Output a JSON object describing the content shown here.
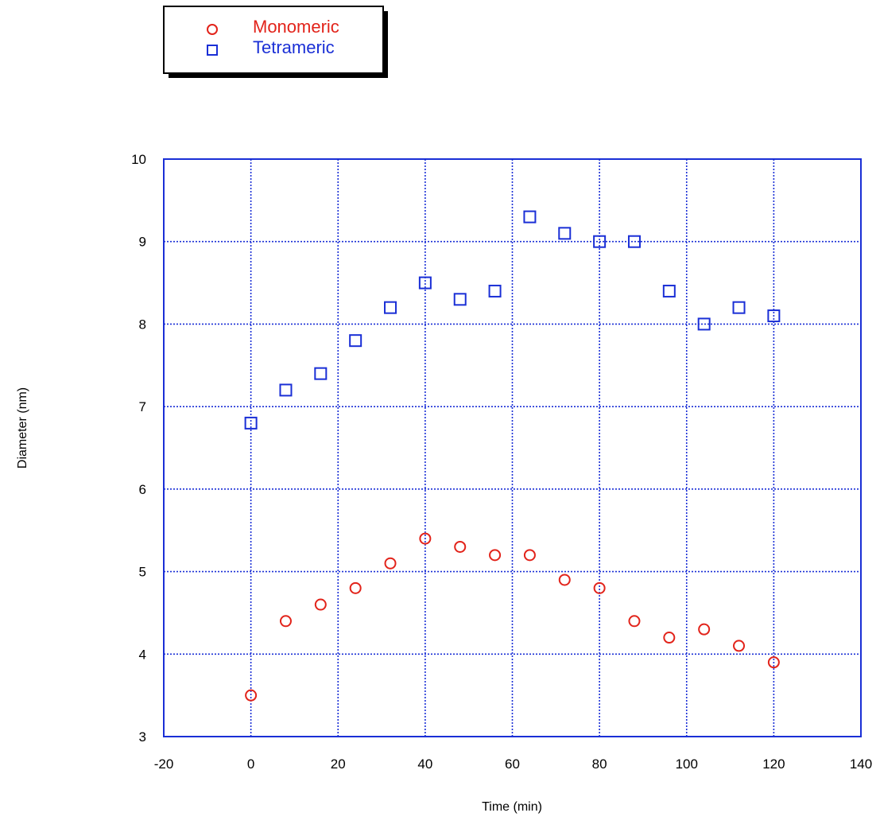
{
  "chart_data": {
    "type": "scatter",
    "xlabel": "Time (min)",
    "ylabel": "Diameter (nm)",
    "xlim": [
      -20,
      140
    ],
    "ylim": [
      3,
      10
    ],
    "xticks": [
      -20,
      0,
      20,
      40,
      60,
      80,
      100,
      120,
      140
    ],
    "yticks": [
      3,
      4,
      5,
      6,
      7,
      8,
      9,
      10
    ],
    "grid": true,
    "legend_position": "top-left (outside plot)",
    "axis_color": "#1a2fd6",
    "series": [
      {
        "name": "Monomeric",
        "marker": "circle",
        "color": "#e2231a",
        "x": [
          0,
          8,
          16,
          24,
          32,
          40,
          48,
          56,
          64,
          72,
          80,
          88,
          96,
          104,
          112,
          120
        ],
        "y": [
          3.5,
          4.4,
          4.6,
          4.8,
          5.1,
          5.4,
          5.3,
          5.2,
          5.2,
          4.9,
          4.8,
          4.4,
          4.2,
          4.3,
          4.1,
          3.9
        ]
      },
      {
        "name": "Tetrameric",
        "marker": "square",
        "color": "#1a2fd6",
        "x": [
          0,
          8,
          16,
          24,
          32,
          40,
          48,
          56,
          64,
          72,
          80,
          88,
          96,
          104,
          112,
          120
        ],
        "y": [
          6.8,
          7.2,
          7.4,
          7.8,
          8.2,
          8.5,
          8.3,
          8.4,
          9.3,
          9.1,
          9.0,
          9.0,
          8.4,
          8.0,
          8.2,
          8.1
        ]
      }
    ]
  }
}
